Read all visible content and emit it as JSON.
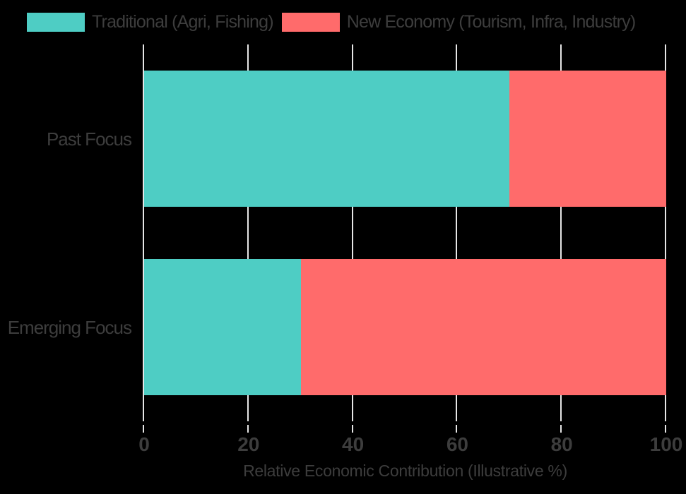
{
  "colors": {
    "background": "#000000",
    "text": "#3d3d3d",
    "gridline": "#e6e6e6",
    "series_teal": "#4ECDC4",
    "series_coral": "#FF6B6B"
  },
  "chart_data": {
    "type": "bar",
    "orientation": "horizontal",
    "stacked": true,
    "categories": [
      "Past Focus",
      "Emerging Focus"
    ],
    "series": [
      {
        "name": "Traditional (Agri, Fishing)",
        "color": "#4ECDC4",
        "values": [
          70,
          30
        ]
      },
      {
        "name": "New Economy (Tourism, Infra, Industry)",
        "color": "#FF6B6B",
        "values": [
          30,
          70
        ]
      }
    ],
    "xlabel": "Relative Economic Contribution (Illustrative %)",
    "xlim": [
      0,
      100
    ],
    "xticks": [
      0,
      20,
      40,
      60,
      80,
      100
    ],
    "grid": true,
    "legend_position": "top-left"
  }
}
